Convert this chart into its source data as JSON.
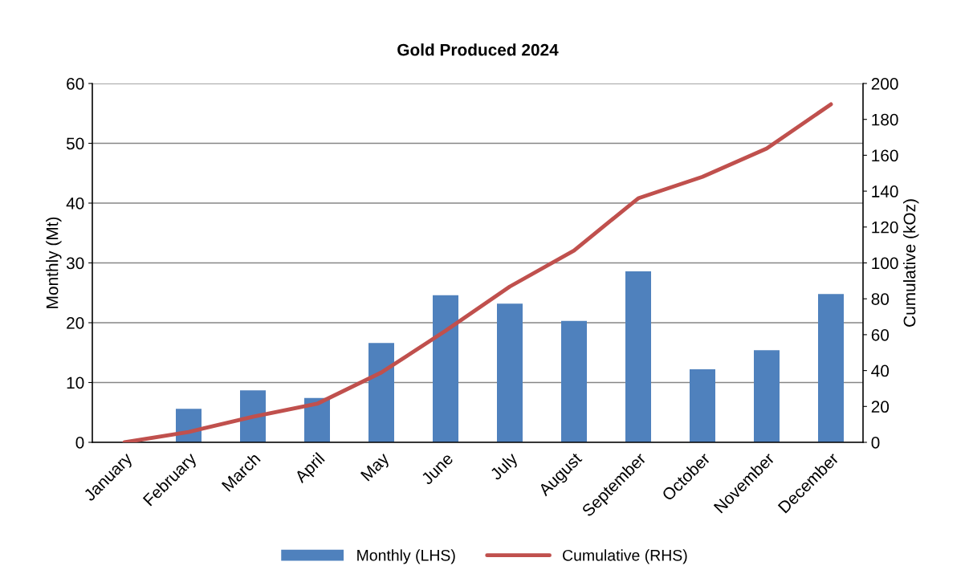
{
  "chart_data": {
    "type": "bar",
    "title": "Gold Produced 2024",
    "ylabel": "Monthly (Mt)",
    "y2label": "Cumulative (kOz)",
    "categories": [
      "January",
      "February",
      "March",
      "April",
      "May",
      "June",
      "July",
      "August",
      "September",
      "October",
      "November",
      "December"
    ],
    "series": [
      {
        "name": "Monthly (LHS)",
        "color": "#4f81bd",
        "values": [
          0,
          5.6,
          8.7,
          7.4,
          16.6,
          24.6,
          23.2,
          20.3,
          28.6,
          12.2,
          15.4,
          24.8
        ]
      },
      {
        "name": "Cumulative (RHS)",
        "type": "line",
        "axis": "y2",
        "color": "#c0504d",
        "values": [
          0,
          5.8,
          14.3,
          21.5,
          38.9,
          62.2,
          86.8,
          106.9,
          136,
          148,
          163.8,
          188.4
        ]
      }
    ],
    "ylim": [
      0,
      60
    ],
    "yticks": [
      0,
      10,
      20,
      30,
      40,
      50,
      60
    ],
    "y2lim": [
      0,
      200
    ],
    "y2ticks": [
      0,
      20,
      40,
      60,
      80,
      100,
      120,
      140,
      160,
      180,
      200
    ],
    "grid": "y",
    "legend": "bottom",
    "marker": "none",
    "line_style": "solid"
  }
}
